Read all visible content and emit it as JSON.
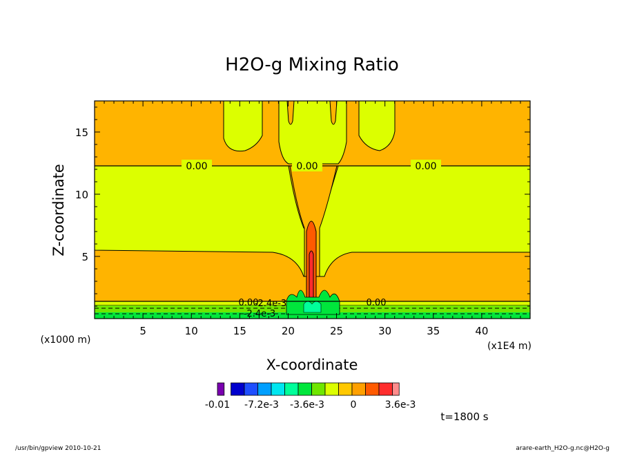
{
  "chart_data": {
    "type": "contour",
    "title": "H2O-g Mixing Ratio",
    "xlabel": "X-coordinate",
    "ylabel": "Z-coordinate",
    "x_unit": "(x1000 m)",
    "x_scale_note": "(x1E4 m)",
    "xlim": [
      0,
      45
    ],
    "ylim": [
      0,
      17.5
    ],
    "x_ticks": [
      "5",
      "10",
      "15",
      "20",
      "25",
      "30",
      "35",
      "40"
    ],
    "y_ticks": [
      "5",
      "10",
      "15"
    ],
    "contour_labels": [
      "0.00",
      "0.00",
      "0.00",
      "0.00",
      "0.00",
      "-2.4e-3",
      "-2.4e-3"
    ],
    "colorbar": {
      "colors": [
        "#7a00b0",
        "#0000cd",
        "#1f4fff",
        "#009fff",
        "#00e6f0",
        "#00ff9a",
        "#00e63c",
        "#6fe600",
        "#dcff00",
        "#ffc800",
        "#ffa000",
        "#ff5a00",
        "#ff2d2d",
        "#ff8c8c"
      ],
      "tick_labels": [
        "-0.01",
        "-7.2e-3",
        "-3.6e-3",
        "0",
        "3.6e-3"
      ]
    },
    "time_label": "t=1800 s"
  },
  "footer": {
    "program": "/usr/bin/gpview   2010-10-21",
    "source": "arare-earth_H2O-g.nc@H2O-g"
  }
}
